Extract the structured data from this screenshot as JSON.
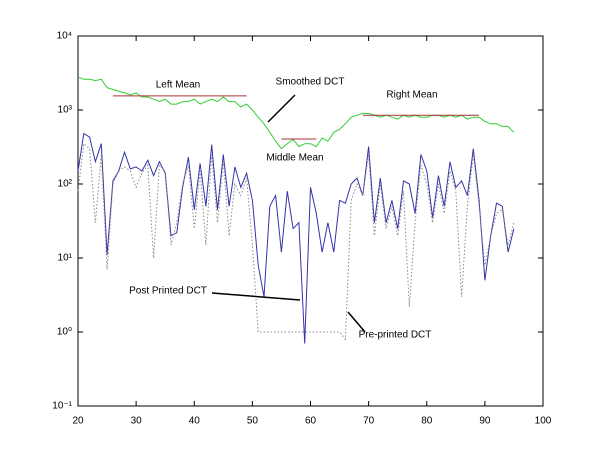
{
  "chart_data": {
    "type": "line",
    "log_y": true,
    "xlim": [
      20,
      100
    ],
    "ylim": [
      0.1,
      10000
    ],
    "xticks": [
      20,
      30,
      40,
      50,
      60,
      70,
      80,
      90,
      100
    ],
    "yticks": [
      {
        "value": 0.1,
        "label": "10⁻¹"
      },
      {
        "value": 1,
        "label": "10⁰"
      },
      {
        "value": 10,
        "label": "10¹"
      },
      {
        "value": 100,
        "label": "10²"
      },
      {
        "value": 1000,
        "label": "10³"
      },
      {
        "value": 10000,
        "label": "10⁴"
      }
    ],
    "x": [
      20,
      21,
      22,
      23,
      24,
      25,
      26,
      27,
      28,
      29,
      30,
      31,
      32,
      33,
      34,
      35,
      36,
      37,
      38,
      39,
      40,
      41,
      42,
      43,
      44,
      45,
      46,
      47,
      48,
      49,
      50,
      51,
      52,
      53,
      54,
      55,
      56,
      57,
      58,
      59,
      60,
      61,
      62,
      63,
      64,
      65,
      66,
      67,
      68,
      69,
      70,
      71,
      72,
      73,
      74,
      75,
      76,
      77,
      78,
      79,
      80,
      81,
      82,
      83,
      84,
      85,
      86,
      87,
      88,
      89,
      90,
      91,
      92,
      93,
      94,
      95
    ],
    "series": [
      {
        "name": "Smoothed DCT",
        "color": "#33cc33",
        "dash": "none",
        "values": [
          2800,
          2600,
          2600,
          2500,
          2600,
          2000,
          1900,
          1800,
          1700,
          1600,
          1700,
          1500,
          1500,
          1400,
          1300,
          1400,
          1200,
          1200,
          1300,
          1300,
          1400,
          1200,
          1300,
          1400,
          1300,
          1500,
          1300,
          1300,
          1100,
          1200,
          1000,
          800,
          650,
          500,
          380,
          300,
          350,
          400,
          320,
          350,
          350,
          320,
          420,
          380,
          500,
          550,
          650,
          800,
          850,
          900,
          900,
          850,
          800,
          850,
          800,
          750,
          850,
          800,
          850,
          800,
          800,
          850,
          850,
          800,
          850,
          800,
          850,
          750,
          800,
          800,
          700,
          650,
          650,
          600,
          600,
          500
        ]
      },
      {
        "name": "Post Printed DCT",
        "color": "#3333aa",
        "dash": "none",
        "values": [
          150,
          480,
          430,
          200,
          350,
          11,
          110,
          150,
          270,
          160,
          170,
          150,
          210,
          130,
          200,
          140,
          20,
          22,
          90,
          230,
          45,
          190,
          50,
          340,
          45,
          250,
          50,
          170,
          90,
          140,
          60,
          8,
          3,
          50,
          70,
          12,
          80,
          25,
          30,
          0.7,
          90,
          40,
          12,
          30,
          12,
          60,
          55,
          100,
          120,
          70,
          320,
          30,
          120,
          30,
          60,
          25,
          110,
          100,
          40,
          250,
          150,
          35,
          130,
          50,
          200,
          90,
          110,
          70,
          300,
          60,
          5,
          20,
          55,
          50,
          12,
          25
        ]
      },
      {
        "name": "Pre-printed DCT",
        "color": "#888888",
        "dash": "1.5,2",
        "values": [
          80,
          350,
          300,
          30,
          250,
          7,
          100,
          150,
          170,
          150,
          90,
          140,
          180,
          10,
          180,
          150,
          15,
          30,
          100,
          180,
          25,
          150,
          15,
          250,
          30,
          200,
          20,
          100,
          70,
          120,
          15,
          1,
          1,
          1,
          1,
          1,
          1,
          1,
          1,
          1,
          1,
          1,
          1,
          1,
          1,
          1,
          0.8,
          60,
          100,
          70,
          250,
          20,
          100,
          25,
          50,
          20,
          80,
          2.2,
          30,
          180,
          100,
          30,
          100,
          40,
          150,
          80,
          3,
          50,
          250,
          50,
          8,
          20,
          40,
          45,
          15,
          30
        ]
      },
      {
        "name": "Left Mean",
        "color": "#aa3333",
        "dash": "none",
        "x": [
          26,
          49
        ],
        "values": [
          1550,
          1550
        ]
      },
      {
        "name": "Middle Mean",
        "color": "#aa3333",
        "dash": "none",
        "x": [
          55,
          61
        ],
        "values": [
          405,
          405
        ]
      },
      {
        "name": "Right Mean",
        "color": "#aa3333",
        "dash": "none",
        "x": [
          69,
          89
        ],
        "values": [
          850,
          850
        ]
      }
    ]
  }
}
